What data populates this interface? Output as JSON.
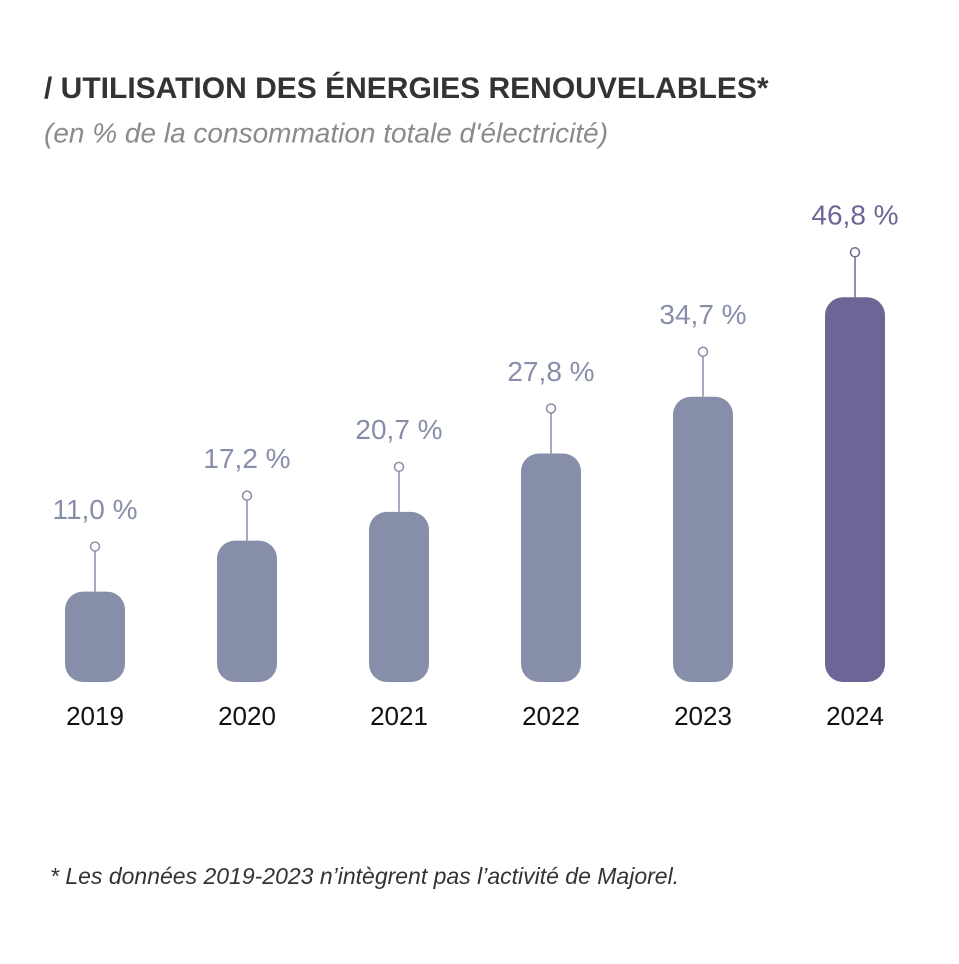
{
  "chart_data": {
    "type": "bar",
    "title": "/ UTILISATION DES ÉNERGIES RENOUVELABLES*",
    "subtitle": "(en % de la consommation totale d'électricité)",
    "categories": [
      "2019",
      "2020",
      "2021",
      "2022",
      "2023",
      "2024"
    ],
    "values": [
      11.0,
      17.2,
      20.7,
      27.8,
      34.7,
      46.8
    ],
    "value_labels": [
      "11,0 %",
      "17,2 %",
      "20,7 %",
      "27,8 %",
      "34,7 %",
      "46,8 %"
    ],
    "colors": [
      "#878ea9",
      "#878ea9",
      "#878ea9",
      "#878ea9",
      "#878ea9",
      "#6f6496"
    ],
    "note": "* Les données 2019-2023 n’intègrent pas l’activité de Majorel."
  }
}
